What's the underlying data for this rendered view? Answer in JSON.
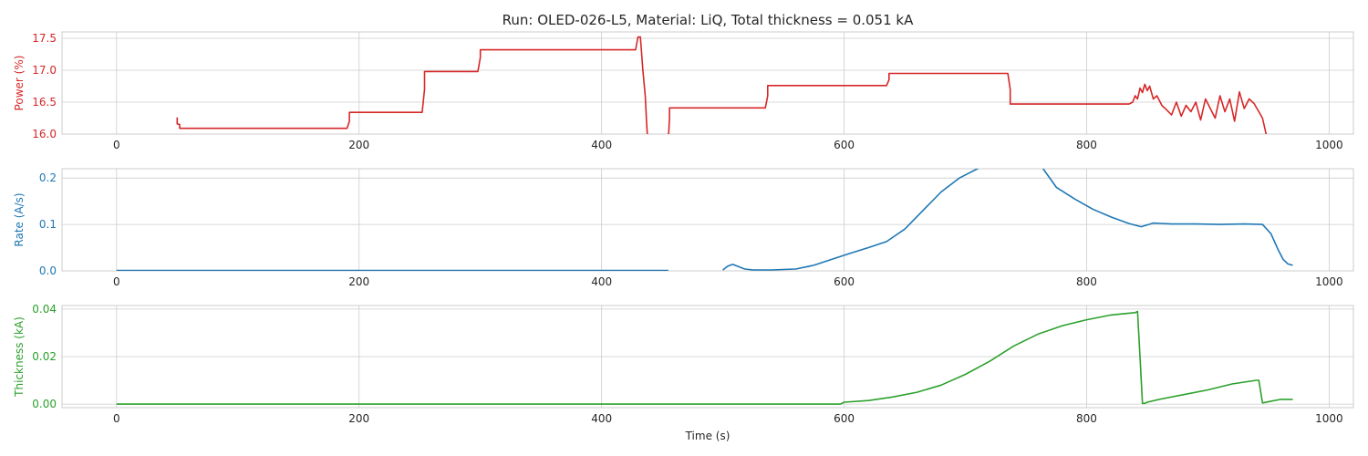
{
  "chart_data": {
    "type": "line",
    "title": "Run: OLED-026-L5, Material: LiQ, Total thickness = 0.051 kA",
    "xlabel": "Time (s)",
    "xlim": [
      -45,
      1020
    ],
    "x_ticks": [
      "0",
      "200",
      "400",
      "600",
      "800",
      "1000"
    ],
    "panels": [
      {
        "name": "power",
        "ylabel": "Power (%)",
        "color": "#d62728",
        "ylim": [
          16.0,
          17.6
        ],
        "y_ticks": [
          "16.0",
          "16.5",
          "17.0",
          "17.5"
        ],
        "grid": true,
        "series": [
          {
            "x": [
              50,
              50,
              52,
              52,
              190,
              192,
              192,
              252,
              254,
              254,
              298,
              300,
              300,
              428,
              430,
              432,
              434,
              436,
              437,
              438
            ],
            "y": [
              16.26,
              16.16,
              16.15,
              16.09,
              16.09,
              16.2,
              16.34,
              16.34,
              16.7,
              16.98,
              16.98,
              17.2,
              17.32,
              17.32,
              17.52,
              17.52,
              17.0,
              16.6,
              16.2,
              15.9
            ]
          },
          {
            "x": [
              455,
              456,
              456,
              535,
              537,
              537,
              635,
              637,
              637,
              735,
              737,
              737,
              835,
              838,
              840,
              842,
              844,
              846,
              848,
              850,
              852,
              855,
              858,
              862,
              866,
              870,
              874,
              878,
              882,
              886,
              890,
              894,
              898,
              902,
              906,
              910,
              914,
              918,
              922,
              926,
              930,
              934,
              938,
              942,
              945,
              948
            ],
            "y": [
              15.9,
              16.25,
              16.41,
              16.41,
              16.6,
              16.76,
              16.76,
              16.85,
              16.95,
              16.95,
              16.7,
              16.47,
              16.47,
              16.5,
              16.6,
              16.55,
              16.72,
              16.65,
              16.78,
              16.68,
              16.75,
              16.55,
              16.6,
              16.45,
              16.38,
              16.3,
              16.5,
              16.28,
              16.45,
              16.35,
              16.5,
              16.22,
              16.55,
              16.4,
              16.25,
              16.6,
              16.35,
              16.55,
              16.2,
              16.66,
              16.4,
              16.55,
              16.48,
              16.35,
              16.25,
              16.0
            ]
          }
        ]
      },
      {
        "name": "rate",
        "ylabel": "Rate (A/s)",
        "color": "#1f77b4",
        "ylim": [
          0.0,
          0.22
        ],
        "y_ticks": [
          "0.0",
          "0.1",
          "0.2"
        ],
        "grid": true,
        "series": [
          {
            "x": [
              0,
              100,
              200,
              300,
              400,
              455
            ],
            "y": [
              0.001,
              0.001,
              0.001,
              0.001,
              0.001,
              0.001
            ]
          },
          {
            "x": [
              500,
              504,
              508,
              512,
              518,
              525,
              540,
              560,
              575,
              590,
              605,
              620,
              635,
              650,
              665,
              680,
              695,
              710,
              720,
              760,
              775,
              790,
              805,
              820,
              835,
              845,
              855,
              870,
              890,
              910,
              930,
              945,
              952,
              958,
              962,
              966,
              970
            ],
            "y": [
              0.002,
              0.01,
              0.014,
              0.01,
              0.004,
              0.002,
              0.002,
              0.004,
              0.012,
              0.025,
              0.038,
              0.05,
              0.063,
              0.09,
              0.13,
              0.17,
              0.2,
              0.22,
              0.235,
              0.235,
              0.18,
              0.155,
              0.133,
              0.116,
              0.102,
              0.095,
              0.103,
              0.101,
              0.101,
              0.1,
              0.101,
              0.1,
              0.08,
              0.045,
              0.025,
              0.015,
              0.012
            ]
          }
        ]
      },
      {
        "name": "thickness",
        "ylabel": "Thickness (kA)",
        "color": "#2ca02c",
        "ylim": [
          -0.0015,
          0.0415
        ],
        "y_ticks": [
          "0.00",
          "0.02",
          "0.04"
        ],
        "grid": true,
        "series": [
          {
            "x": [
              0,
              597,
              600,
              620,
              640,
              660,
              680,
              700,
              720,
              740,
              760,
              780,
              800,
              820,
              830,
              840,
              842,
              844,
              846,
              848,
              850,
              860,
              880,
              900,
              920,
              940,
              942,
              945,
              960,
              970
            ],
            "y": [
              0.0,
              0.0,
              0.0008,
              0.0015,
              0.003,
              0.005,
              0.008,
              0.0125,
              0.018,
              0.0245,
              0.0295,
              0.033,
              0.0355,
              0.0375,
              0.038,
              0.0385,
              0.039,
              0.02,
              0.0003,
              0.0003,
              0.0008,
              0.002,
              0.004,
              0.006,
              0.0085,
              0.01,
              0.01,
              0.0005,
              0.002,
              0.002
            ]
          }
        ]
      }
    ]
  }
}
